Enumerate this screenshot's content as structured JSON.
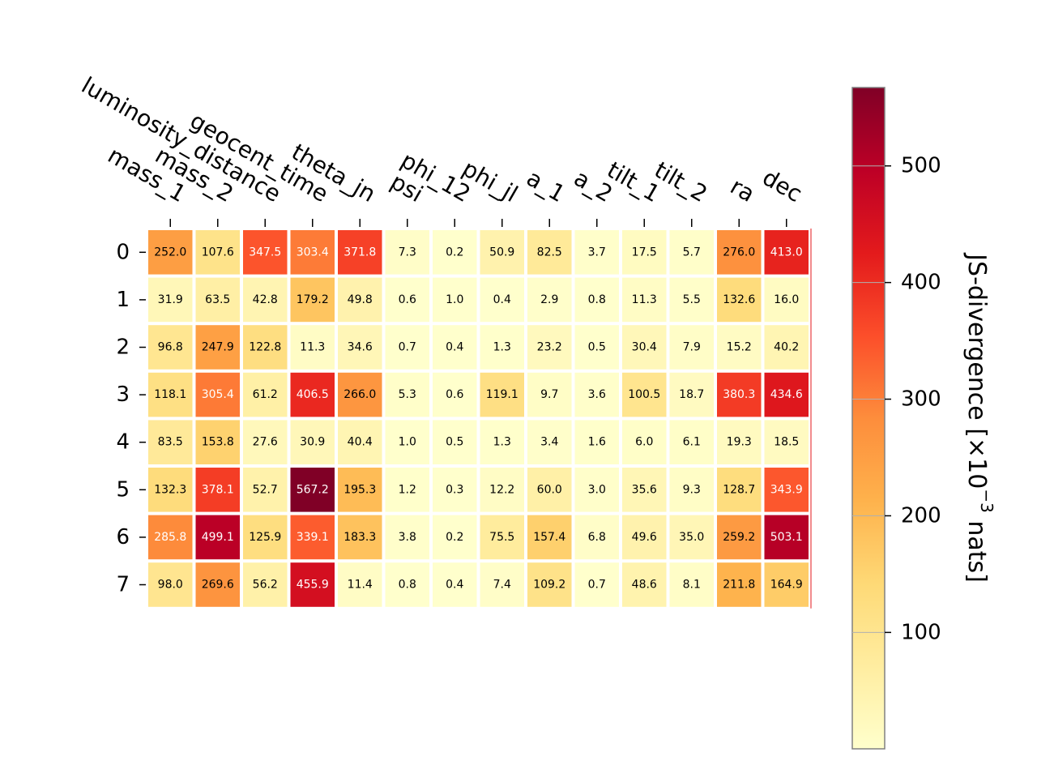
{
  "chart_data": {
    "type": "heatmap",
    "title": "",
    "columns": [
      "mass_1",
      "mass_2",
      "luminosity_distance",
      "geocent_time",
      "theta_jn",
      "psi",
      "phi_12",
      "phi_jl",
      "a_1",
      "a_2",
      "tilt_1",
      "tilt_2",
      "ra",
      "dec"
    ],
    "rows": [
      "0",
      "1",
      "2",
      "3",
      "4",
      "5",
      "6",
      "7"
    ],
    "values": [
      [
        252.0,
        107.6,
        347.5,
        303.4,
        371.8,
        7.3,
        0.2,
        50.9,
        82.5,
        3.7,
        17.5,
        5.7,
        276.0,
        413.0
      ],
      [
        31.9,
        63.5,
        42.8,
        179.2,
        49.8,
        0.6,
        1.0,
        0.4,
        2.9,
        0.8,
        11.3,
        5.5,
        132.6,
        16.0
      ],
      [
        96.8,
        247.9,
        122.8,
        11.3,
        34.6,
        0.7,
        0.4,
        1.3,
        23.2,
        0.5,
        30.4,
        7.9,
        15.2,
        40.2
      ],
      [
        118.1,
        305.4,
        61.2,
        406.5,
        266.0,
        5.3,
        0.6,
        119.1,
        9.7,
        3.6,
        100.5,
        18.7,
        380.3,
        434.6
      ],
      [
        83.5,
        153.8,
        27.6,
        30.9,
        40.4,
        1.0,
        0.5,
        1.3,
        3.4,
        1.6,
        6.0,
        6.1,
        19.3,
        18.5
      ],
      [
        132.3,
        378.1,
        52.7,
        567.2,
        195.3,
        1.2,
        0.3,
        12.2,
        60.0,
        3.0,
        35.6,
        9.3,
        128.7,
        343.9
      ],
      [
        285.8,
        499.1,
        125.9,
        339.1,
        183.3,
        3.8,
        0.2,
        75.5,
        157.4,
        6.8,
        49.6,
        35.0,
        259.2,
        503.1
      ],
      [
        98.0,
        269.6,
        56.2,
        455.9,
        11.4,
        0.8,
        0.4,
        7.4,
        109.2,
        0.7,
        48.6,
        8.1,
        211.8,
        164.9
      ]
    ],
    "colormap": "YlOrRd",
    "colorbar": {
      "label_main": "JS-divergence [×10",
      "label_exp": "−3",
      "label_end": " nats]",
      "range": [
        0.2,
        567.2
      ],
      "ticks": [
        "100",
        "200",
        "300",
        "400",
        "500"
      ]
    }
  }
}
